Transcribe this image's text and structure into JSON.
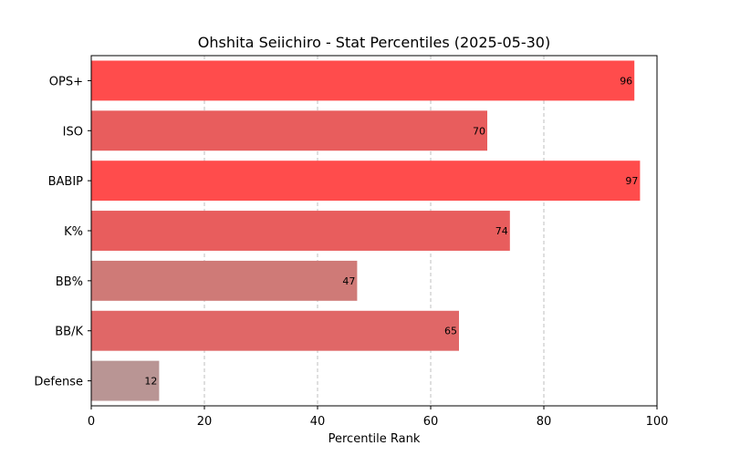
{
  "chart_data": {
    "type": "bar",
    "orientation": "horizontal",
    "title": "Ohshita Seiichiro - Stat Percentiles (2025-05-30)",
    "xlabel": "Percentile Rank",
    "ylabel": "",
    "xlim": [
      0,
      100
    ],
    "xticks": [
      0,
      20,
      40,
      60,
      80,
      100
    ],
    "grid": "x-dashed",
    "categories": [
      "OPS+",
      "ISO",
      "BABIP",
      "K%",
      "BB%",
      "BB/K",
      "Defense"
    ],
    "values": [
      96,
      70,
      97,
      74,
      47,
      65,
      12
    ],
    "colors": [
      "#ff4c4c",
      "#e85d5d",
      "#ff4c4c",
      "#e85d5d",
      "#cf7a77",
      "#e06767",
      "#b99594"
    ]
  }
}
